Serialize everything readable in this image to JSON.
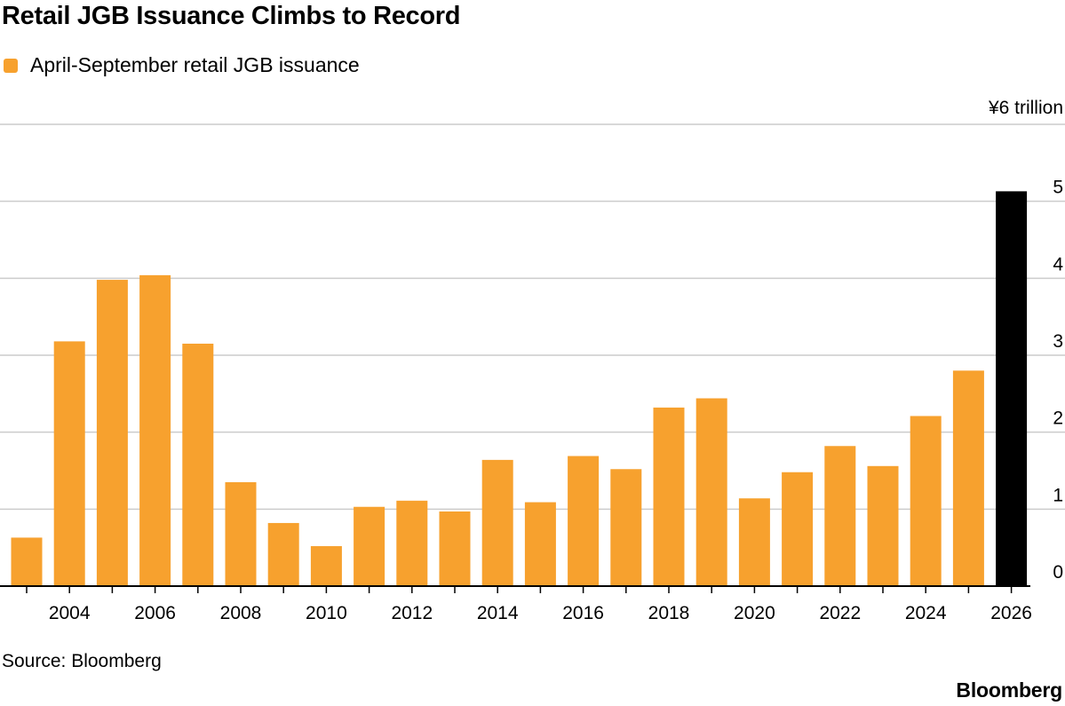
{
  "header": {
    "title": "Retail JGB Issuance Climbs to Record"
  },
  "footer": {
    "source": "Source: Bloomberg",
    "brand": "Bloomberg"
  },
  "chart_data": {
    "type": "bar",
    "title": "Retail JGB Issuance Climbs to Record",
    "xlabel": "",
    "ylabel": "",
    "y_unit_label": "¥6 trillion",
    "ylim": [
      0,
      6
    ],
    "yticks": [
      0,
      1,
      2,
      3,
      4,
      5
    ],
    "grid": true,
    "legend_placement": "top-left",
    "x_tick_labels": [
      "2004",
      "2006",
      "2008",
      "2010",
      "2012",
      "2014",
      "2016",
      "2018",
      "2020",
      "2022",
      "2024",
      "2026"
    ],
    "categories": [
      2003,
      2004,
      2005,
      2006,
      2007,
      2008,
      2009,
      2010,
      2011,
      2012,
      2013,
      2014,
      2015,
      2016,
      2017,
      2018,
      2019,
      2020,
      2021,
      2022,
      2023,
      2024,
      2025,
      2026
    ],
    "series": [
      {
        "name": "April-September retail JGB issuance",
        "color": "#f7a12e",
        "highlight_color": "#000000",
        "highlight_index": 23,
        "values": [
          0.63,
          3.18,
          3.98,
          4.04,
          3.15,
          1.35,
          0.82,
          0.52,
          1.03,
          1.11,
          0.97,
          1.64,
          1.09,
          1.69,
          1.52,
          2.32,
          2.44,
          1.14,
          1.48,
          1.82,
          1.56,
          2.21,
          2.8,
          5.13
        ]
      }
    ]
  }
}
